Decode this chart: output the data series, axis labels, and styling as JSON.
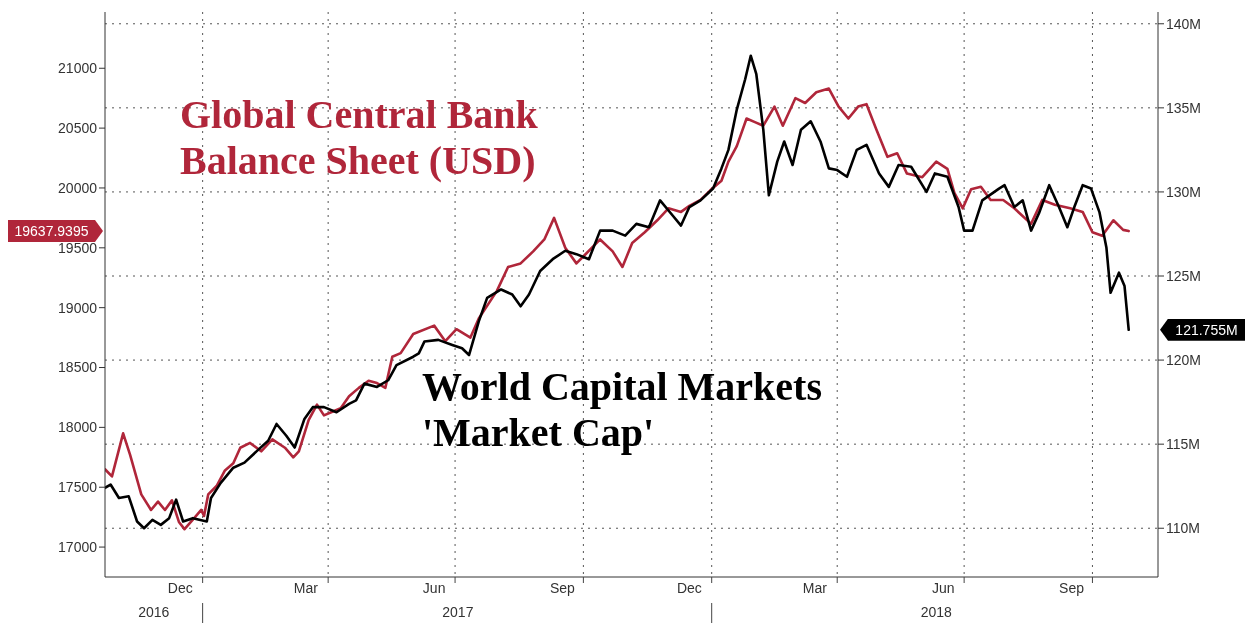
{
  "chart_data": {
    "type": "line",
    "xlim": [
      "2016-10-23",
      "2018-11-17"
    ],
    "xticks": [
      {
        "value": "2016-12-16",
        "label": "Dec"
      },
      {
        "value": "2017-01-01",
        "label": null
      },
      {
        "value": "2017-03-16",
        "label": "Mar"
      },
      {
        "value": "2017-04-01",
        "label": null
      },
      {
        "value": "2017-06-16",
        "label": "Jun"
      },
      {
        "value": "2017-07-01",
        "label": null
      },
      {
        "value": "2017-09-16",
        "label": "Sep"
      },
      {
        "value": "2017-10-01",
        "label": null
      },
      {
        "value": "2017-12-16",
        "label": "Dec"
      },
      {
        "value": "2018-01-01",
        "label": null
      },
      {
        "value": "2018-03-16",
        "label": "Mar"
      },
      {
        "value": "2018-04-01",
        "label": null
      },
      {
        "value": "2018-06-16",
        "label": "Jun"
      },
      {
        "value": "2018-07-01",
        "label": null
      },
      {
        "value": "2018-09-16",
        "label": "Sep"
      },
      {
        "value": "2018-10-01",
        "label": null
      }
    ],
    "x2lim": [
      "2016-10-23",
      "2018-11-17"
    ],
    "x2ticks": [
      {
        "value": "2016-11-27",
        "label": "2016"
      },
      {
        "value": "2017-01-01",
        "label": null
      },
      {
        "value": "2017-07-03",
        "label": "2017"
      },
      {
        "value": "2018-01-01",
        "label": null
      },
      {
        "value": "2018-06-11",
        "label": "2018"
      }
    ],
    "ylim": [
      16750,
      21470
    ],
    "yticks": [
      17000,
      17500,
      18000,
      18500,
      19000,
      19500,
      20000,
      20500,
      21000
    ],
    "y2lim": [
      107.1,
      140.7
    ],
    "y2ticks": [
      {
        "value": 110,
        "label": "110M"
      },
      {
        "value": 115,
        "label": "115M"
      },
      {
        "value": 120,
        "label": "120M"
      },
      {
        "value": 125,
        "label": "125M"
      },
      {
        "value": 130,
        "label": "130M"
      },
      {
        "value": 135,
        "label": "135M"
      },
      {
        "value": 140,
        "label": "140M"
      }
    ],
    "grid": true,
    "annotations": [
      "19637.9395",
      "121.755M"
    ],
    "series": [
      {
        "name": "Global Central Bank Balance Sheet (USD)",
        "color": "#b0263a",
        "x": [
          "2016-10-23",
          "2016-10-28",
          "2016-11-05",
          "2016-11-10",
          "2016-11-18",
          "2016-11-25",
          "2016-11-30",
          "2016-12-05",
          "2016-12-10",
          "2016-12-15",
          "2016-12-19",
          "2016-12-25",
          "2016-12-31",
          "2017-01-02",
          "2017-01-05",
          "2017-01-11",
          "2017-01-17",
          "2017-01-23",
          "2017-01-28",
          "2017-02-04",
          "2017-02-12",
          "2017-02-20",
          "2017-03-01",
          "2017-03-07",
          "2017-03-11",
          "2017-03-18",
          "2017-03-24",
          "2017-03-29",
          "2017-04-04",
          "2017-04-10",
          "2017-04-16",
          "2017-04-23",
          "2017-04-30",
          "2017-05-06",
          "2017-05-12",
          "2017-05-17",
          "2017-05-23",
          "2017-06-01",
          "2017-06-16",
          "2017-06-24",
          "2017-07-02",
          "2017-07-12",
          "2017-07-18",
          "2017-07-31",
          "2017-08-08",
          "2017-08-17",
          "2017-08-26",
          "2017-09-03",
          "2017-09-10",
          "2017-09-18",
          "2017-09-26",
          "2017-10-02",
          "2017-10-13",
          "2017-10-22",
          "2017-10-29",
          "2017-11-05",
          "2017-11-14",
          "2017-11-23",
          "2017-12-01",
          "2017-12-10",
          "2017-12-16",
          "2017-12-24",
          "2017-12-31",
          "2018-01-08",
          "2018-01-13",
          "2018-01-19",
          "2018-01-26",
          "2018-02-01",
          "2018-02-07",
          "2018-02-15",
          "2018-02-21",
          "2018-03-02",
          "2018-03-09",
          "2018-03-17",
          "2018-03-26",
          "2018-04-02",
          "2018-04-09",
          "2018-04-16",
          "2018-04-22",
          "2018-04-29",
          "2018-05-07",
          "2018-05-14",
          "2018-05-21",
          "2018-06-01",
          "2018-06-11",
          "2018-06-19",
          "2018-06-24",
          "2018-06-30",
          "2018-07-06",
          "2018-07-13",
          "2018-07-20",
          "2018-07-29",
          "2018-08-06",
          "2018-08-18",
          "2018-08-26",
          "2018-09-04",
          "2018-09-15",
          "2018-09-24",
          "2018-10-01",
          "2018-10-08",
          "2018-10-16",
          "2018-10-23",
          "2018-10-27"
        ],
        "values": [
          17650,
          17590,
          17950,
          17770,
          17440,
          17310,
          17380,
          17310,
          17390,
          17210,
          17150,
          17230,
          17310,
          17260,
          17440,
          17510,
          17640,
          17700,
          17830,
          17870,
          17800,
          17900,
          17830,
          17750,
          17800,
          18060,
          18190,
          18100,
          18130,
          18160,
          18260,
          18330,
          18390,
          18370,
          18330,
          18590,
          18620,
          18780,
          18850,
          18720,
          18820,
          18750,
          18910,
          19140,
          19340,
          19370,
          19470,
          19570,
          19750,
          19500,
          19370,
          19440,
          19570,
          19470,
          19340,
          19540,
          19630,
          19730,
          19830,
          19800,
          19850,
          19900,
          19980,
          20060,
          20220,
          20350,
          20580,
          20550,
          20520,
          20680,
          20520,
          20750,
          20710,
          20800,
          20830,
          20680,
          20580,
          20680,
          20700,
          20490,
          20260,
          20290,
          20120,
          20090,
          20220,
          20160,
          19960,
          19830,
          19990,
          20010,
          19900,
          19900,
          19830,
          19700,
          19900,
          19860,
          19830,
          19800,
          19630,
          19600,
          19730,
          19650,
          19640
        ]
      },
      {
        "name": "World Capital Markets 'Market Cap'",
        "color": "#000000",
        "axis": "y2",
        "x": [
          "2016-10-23",
          "2016-10-27",
          "2016-11-02",
          "2016-11-09",
          "2016-11-15",
          "2016-11-20",
          "2016-11-26",
          "2016-12-02",
          "2016-12-08",
          "2016-12-13",
          "2016-12-18",
          "2016-12-25",
          "2017-01-04",
          "2017-01-07",
          "2017-01-14",
          "2017-01-23",
          "2017-01-31",
          "2017-02-09",
          "2017-02-17",
          "2017-02-23",
          "2017-03-02",
          "2017-03-08",
          "2017-03-15",
          "2017-03-21",
          "2017-03-29",
          "2017-04-07",
          "2017-04-16",
          "2017-04-21",
          "2017-04-27",
          "2017-05-06",
          "2017-05-14",
          "2017-05-20",
          "2017-06-01",
          "2017-06-05",
          "2017-06-09",
          "2017-06-19",
          "2017-06-29",
          "2017-07-06",
          "2017-07-11",
          "2017-07-18",
          "2017-07-24",
          "2017-08-03",
          "2017-08-11",
          "2017-08-17",
          "2017-08-23",
          "2017-08-31",
          "2017-09-09",
          "2017-09-18",
          "2017-09-26",
          "2017-10-05",
          "2017-10-13",
          "2017-10-22",
          "2017-10-31",
          "2017-11-08",
          "2017-11-17",
          "2017-11-25",
          "2017-12-04",
          "2017-12-10",
          "2017-12-16",
          "2017-12-24",
          "2018-01-02",
          "2018-01-08",
          "2018-01-13",
          "2018-01-19",
          "2018-01-25",
          "2018-01-29",
          "2018-02-02",
          "2018-02-07",
          "2018-02-11",
          "2018-02-17",
          "2018-02-22",
          "2018-02-28",
          "2018-03-06",
          "2018-03-13",
          "2018-03-20",
          "2018-03-26",
          "2018-04-01",
          "2018-04-08",
          "2018-04-15",
          "2018-04-22",
          "2018-05-01",
          "2018-05-08",
          "2018-05-15",
          "2018-05-24",
          "2018-06-04",
          "2018-06-10",
          "2018-06-19",
          "2018-06-27",
          "2018-07-01",
          "2018-07-07",
          "2018-07-14",
          "2018-07-26",
          "2018-07-30",
          "2018-08-06",
          "2018-08-12",
          "2018-08-18",
          "2018-08-24",
          "2018-08-31",
          "2018-09-07",
          "2018-09-13",
          "2018-09-18",
          "2018-09-24",
          "2018-09-30",
          "2018-10-06",
          "2018-10-11",
          "2018-10-14",
          "2018-10-20",
          "2018-10-24",
          "2018-10-27"
        ],
        "values": [
          112.4,
          112.6,
          111.8,
          111.9,
          110.4,
          110.0,
          110.5,
          110.2,
          110.6,
          111.7,
          110.4,
          110.6,
          110.4,
          111.8,
          112.7,
          113.6,
          113.9,
          114.6,
          115.2,
          116.2,
          115.5,
          114.8,
          116.5,
          117.2,
          117.2,
          116.9,
          117.4,
          117.6,
          118.6,
          118.4,
          118.8,
          119.7,
          120.2,
          120.4,
          121.1,
          121.2,
          120.9,
          120.7,
          120.3,
          122.3,
          123.7,
          124.2,
          123.9,
          123.2,
          123.9,
          125.3,
          126.0,
          126.5,
          126.3,
          126.0,
          127.7,
          127.7,
          127.4,
          128.1,
          127.9,
          129.5,
          128.6,
          128.0,
          129.1,
          129.5,
          130.2,
          131.4,
          132.5,
          134.9,
          136.7,
          138.1,
          137.0,
          133.7,
          129.8,
          131.8,
          133.0,
          131.6,
          133.7,
          134.2,
          133.0,
          131.4,
          131.3,
          130.9,
          132.5,
          132.8,
          131.1,
          130.3,
          131.6,
          131.5,
          130.0,
          131.1,
          130.9,
          129.1,
          127.7,
          127.7,
          129.5,
          130.2,
          130.4,
          129.1,
          129.5,
          127.7,
          128.8,
          130.4,
          129.1,
          127.9,
          129.1,
          130.4,
          130.2,
          128.8,
          126.7,
          124.0,
          125.2,
          124.4,
          121.8
        ]
      }
    ]
  }
}
